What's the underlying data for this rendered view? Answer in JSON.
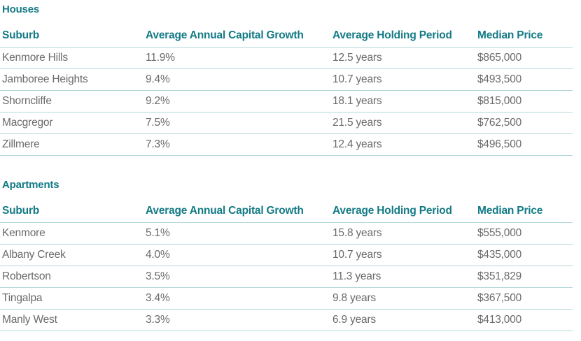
{
  "houses": {
    "title": "Houses",
    "columns": [
      "Suburb",
      "Average Annual Capital Growth",
      "Average Holding Period",
      "Median Price"
    ],
    "rows": [
      [
        "Kenmore Hills",
        "11.9%",
        "12.5 years",
        "$865,000"
      ],
      [
        "Jamboree Heights",
        "9.4%",
        "10.7 years",
        "$493,500"
      ],
      [
        "Shorncliffe",
        "9.2%",
        "18.1 years",
        "$815,000"
      ],
      [
        "Macgregor",
        "7.5%",
        "21.5 years",
        "$762,500"
      ],
      [
        "Zillmere",
        "7.3%",
        "12.4 years",
        "$496,500"
      ]
    ]
  },
  "apartments": {
    "title": "Apartments",
    "columns": [
      "Suburb",
      "Average Annual Capital Growth",
      "Average Holding Period",
      "Median Price"
    ],
    "rows": [
      [
        "Kenmore",
        "5.1%",
        "15.8 years",
        "$555,000"
      ],
      [
        "Albany Creek",
        "4.0%",
        "10.7 years",
        "$435,000"
      ],
      [
        "Robertson",
        "3.5%",
        "11.3 years",
        "$351,829"
      ],
      [
        "Tingalpa",
        "3.4%",
        "9.8 years",
        "$367,500"
      ],
      [
        "Manly West",
        "3.3%",
        "6.9 years",
        "$413,000"
      ]
    ]
  },
  "colors": {
    "accent": "#137a85",
    "text": "#6a6a6a",
    "rule": "#b3d7da"
  }
}
